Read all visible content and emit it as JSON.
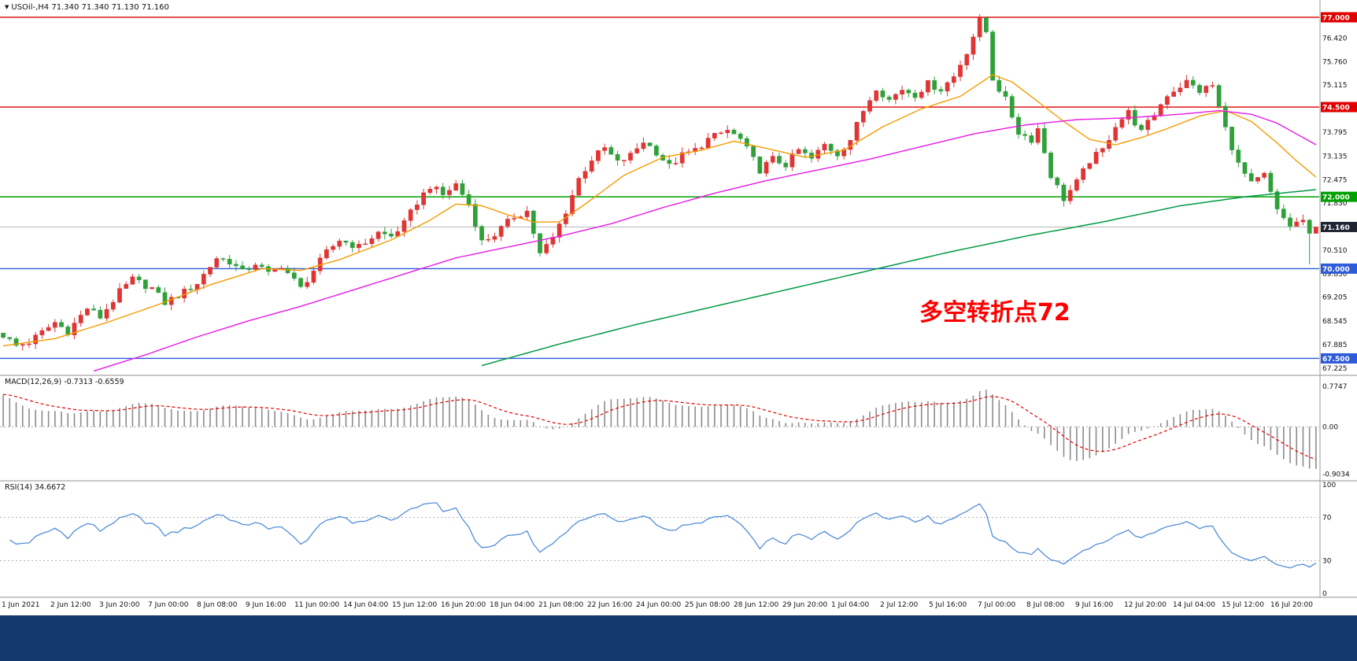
{
  "header": {
    "symbol_text": "USOil-,H4 71.340 71.340 71.130 71.160"
  },
  "window": {
    "bottom_bar_color": "#14386b"
  },
  "chart_data": [
    {
      "type": "candlestick",
      "symbol": "USOil-",
      "timeframe": "H4",
      "ohlc": {
        "open": 71.34,
        "high": 71.34,
        "low": 71.13,
        "close": 71.16
      },
      "x_labels": [
        "1 Jun 2021",
        "2 Jun 12:00",
        "3 Jun 20:00",
        "7 Jun 00:00",
        "8 Jun 08:00",
        "9 Jun 16:00",
        "11 Jun 00:00",
        "14 Jun 04:00",
        "15 Jun 12:00",
        "16 Jun 20:00",
        "18 Jun 04:00",
        "21 Jun 08:00",
        "22 Jun 16:00",
        "24 Jun 00:00",
        "25 Jun 08:00",
        "28 Jun 12:00",
        "29 Jun 20:00",
        "1 Jul 04:00",
        "2 Jul 12:00",
        "5 Jul 16:00",
        "7 Jul 00:00",
        "8 Jul 08:00",
        "9 Jul 16:00",
        "12 Jul 20:00",
        "14 Jul 04:00",
        "15 Jul 12:00",
        "16 Jul 20:00"
      ],
      "y_ticks": [
        76.42,
        75.76,
        75.115,
        74.455,
        73.795,
        73.135,
        72.475,
        71.83,
        70.51,
        69.85,
        69.205,
        68.545,
        67.885,
        67.225
      ],
      "y_range": [
        67.05,
        77.35
      ],
      "levels": [
        {
          "price": 77.0,
          "label": "77.000",
          "color": "#e00000"
        },
        {
          "price": 74.5,
          "label": "74.500",
          "color": "#e00000"
        },
        {
          "price": 72.0,
          "label": "72.000",
          "color": "#00a000"
        },
        {
          "price": 70.0,
          "label": "70.000",
          "color": "#2e5bd8"
        },
        {
          "price": 67.5,
          "label": "67.500",
          "color": "#2e5bd8"
        }
      ],
      "current_price": {
        "value": 71.16,
        "label": "71.160",
        "label_bg": "#1e2430"
      },
      "candle_colors": {
        "up": "#e03535",
        "down": "#2fa03a"
      },
      "num_candles": 204,
      "close_path": [
        [
          0,
          68.15
        ],
        [
          2,
          67.85
        ],
        [
          4,
          67.95
        ],
        [
          8,
          68.5
        ],
        [
          10,
          68.25
        ],
        [
          13,
          68.9
        ],
        [
          15,
          68.65
        ],
        [
          18,
          69.35
        ],
        [
          20,
          69.7
        ],
        [
          23,
          69.45
        ],
        [
          25,
          69.05
        ],
        [
          28,
          69.35
        ],
        [
          30,
          69.6
        ],
        [
          33,
          70.3
        ],
        [
          35,
          70.2
        ],
        [
          37,
          69.9
        ],
        [
          39,
          70.15
        ],
        [
          41,
          69.85
        ],
        [
          43,
          70.1
        ],
        [
          46,
          69.45
        ],
        [
          48,
          69.95
        ],
        [
          50,
          70.45
        ],
        [
          52,
          70.8
        ],
        [
          55,
          70.6
        ],
        [
          58,
          71.0
        ],
        [
          60,
          70.9
        ],
        [
          62,
          71.25
        ],
        [
          64,
          71.85
        ],
        [
          66,
          72.3
        ],
        [
          68,
          72.05
        ],
        [
          70,
          72.35
        ],
        [
          72,
          71.8
        ],
        [
          74,
          70.75
        ],
        [
          76,
          70.95
        ],
        [
          79,
          71.45
        ],
        [
          81,
          71.6
        ],
        [
          83,
          70.4
        ],
        [
          85,
          70.85
        ],
        [
          87,
          71.6
        ],
        [
          89,
          72.5
        ],
        [
          91,
          73.05
        ],
        [
          93,
          73.35
        ],
        [
          95,
          72.95
        ],
        [
          97,
          73.15
        ],
        [
          99,
          73.55
        ],
        [
          101,
          73.25
        ],
        [
          103,
          72.85
        ],
        [
          105,
          73.15
        ],
        [
          107,
          73.3
        ],
        [
          109,
          73.6
        ],
        [
          112,
          73.85
        ],
        [
          114,
          73.6
        ],
        [
          117,
          72.75
        ],
        [
          119,
          73.05
        ],
        [
          121,
          72.9
        ],
        [
          123,
          73.3
        ],
        [
          125,
          73.05
        ],
        [
          127,
          73.45
        ],
        [
          129,
          73.2
        ],
        [
          131,
          73.6
        ],
        [
          133,
          74.4
        ],
        [
          135,
          75.05
        ],
        [
          137,
          74.7
        ],
        [
          139,
          75.0
        ],
        [
          141,
          74.85
        ],
        [
          143,
          75.15
        ],
        [
          145,
          75.0
        ],
        [
          147,
          75.35
        ],
        [
          149,
          76.05
        ],
        [
          151,
          76.9
        ],
        [
          152,
          76.6
        ],
        [
          153,
          75.3
        ],
        [
          155,
          74.7
        ],
        [
          157,
          73.8
        ],
        [
          159,
          73.6
        ],
        [
          160,
          73.9
        ],
        [
          162,
          72.6
        ],
        [
          164,
          71.95
        ],
        [
          166,
          72.4
        ],
        [
          168,
          73.0
        ],
        [
          170,
          73.3
        ],
        [
          172,
          74.0
        ],
        [
          174,
          74.35
        ],
        [
          176,
          73.8
        ],
        [
          178,
          74.3
        ],
        [
          180,
          74.85
        ],
        [
          183,
          75.2
        ],
        [
          185,
          74.95
        ],
        [
          187,
          75.1
        ],
        [
          189,
          73.9
        ],
        [
          191,
          72.9
        ],
        [
          193,
          72.35
        ],
        [
          195,
          72.6
        ],
        [
          197,
          71.6
        ],
        [
          199,
          71.2
        ],
        [
          201,
          71.35
        ],
        [
          202,
          70.9
        ],
        [
          203,
          71.16
        ]
      ],
      "moving_averages": [
        {
          "name": "ma-fast-orange",
          "color": "#f59b00",
          "width": 1.4,
          "points": [
            [
              0,
              67.85
            ],
            [
              8,
              68.05
            ],
            [
              16,
              68.5
            ],
            [
              24,
              69.0
            ],
            [
              32,
              69.55
            ],
            [
              40,
              70.0
            ],
            [
              46,
              69.95
            ],
            [
              52,
              70.25
            ],
            [
              60,
              70.8
            ],
            [
              66,
              71.35
            ],
            [
              70,
              71.8
            ],
            [
              74,
              71.75
            ],
            [
              78,
              71.5
            ],
            [
              82,
              71.3
            ],
            [
              86,
              71.3
            ],
            [
              90,
              71.8
            ],
            [
              96,
              72.6
            ],
            [
              102,
              73.1
            ],
            [
              108,
              73.3
            ],
            [
              113,
              73.55
            ],
            [
              118,
              73.35
            ],
            [
              124,
              73.1
            ],
            [
              130,
              73.3
            ],
            [
              136,
              73.95
            ],
            [
              142,
              74.45
            ],
            [
              148,
              74.8
            ],
            [
              153,
              75.4
            ],
            [
              156,
              75.2
            ],
            [
              160,
              74.65
            ],
            [
              164,
              74.1
            ],
            [
              168,
              73.6
            ],
            [
              172,
              73.45
            ],
            [
              176,
              73.65
            ],
            [
              180,
              73.9
            ],
            [
              185,
              74.25
            ],
            [
              189,
              74.4
            ],
            [
              193,
              74.1
            ],
            [
              197,
              73.5
            ],
            [
              200,
              73.0
            ],
            [
              203,
              72.55
            ]
          ]
        },
        {
          "name": "ma-mid-magenta",
          "color": "#e619e6",
          "width": 1.4,
          "points": [
            [
              14,
              67.15
            ],
            [
              22,
              67.6
            ],
            [
              30,
              68.1
            ],
            [
              38,
              68.55
            ],
            [
              46,
              68.95
            ],
            [
              54,
              69.4
            ],
            [
              62,
              69.85
            ],
            [
              70,
              70.3
            ],
            [
              78,
              70.6
            ],
            [
              86,
              70.9
            ],
            [
              94,
              71.25
            ],
            [
              102,
              71.7
            ],
            [
              110,
              72.1
            ],
            [
              118,
              72.45
            ],
            [
              126,
              72.75
            ],
            [
              134,
              73.05
            ],
            [
              142,
              73.4
            ],
            [
              150,
              73.75
            ],
            [
              158,
              74.0
            ],
            [
              166,
              74.15
            ],
            [
              174,
              74.2
            ],
            [
              182,
              74.3
            ],
            [
              188,
              74.4
            ],
            [
              193,
              74.3
            ],
            [
              197,
              74.05
            ],
            [
              200,
              73.75
            ],
            [
              203,
              73.45
            ]
          ]
        },
        {
          "name": "ma-slow-green",
          "color": "#009944",
          "width": 1.5,
          "points": [
            [
              74,
              67.3
            ],
            [
              86,
              67.9
            ],
            [
              98,
              68.45
            ],
            [
              110,
              68.95
            ],
            [
              122,
              69.45
            ],
            [
              134,
              69.95
            ],
            [
              146,
              70.45
            ],
            [
              158,
              70.9
            ],
            [
              170,
              71.3
            ],
            [
              182,
              71.75
            ],
            [
              192,
              72.0
            ],
            [
              203,
              72.2
            ]
          ]
        }
      ],
      "annotation": {
        "text": "多空转折点72",
        "color": "#ff0000"
      }
    },
    {
      "type": "macd",
      "label_display": "MACD(12,26,9) -0.7313 -0.6559",
      "params": [
        12,
        26,
        9
      ],
      "main_value": -0.7313,
      "signal_value": -0.6559,
      "y_ticks": [
        {
          "v": 0.7747,
          "label": "0.7747"
        },
        {
          "v": 0,
          "label": "0.00"
        },
        {
          "v": -0.9034,
          "label": "-0.9034"
        }
      ],
      "y_range": [
        -1.02,
        0.97
      ],
      "histogram_color": "#8c8c8c",
      "signal_color": "#e60000"
    },
    {
      "type": "line",
      "label_display": "RSI(14) 34.6672",
      "period": 14,
      "value": 34.6672,
      "levels": [
        70,
        30
      ],
      "y_ticks": [
        100,
        70,
        30,
        0
      ],
      "y_range": [
        0,
        100
      ],
      "line_color": "#4f8ed8"
    }
  ]
}
